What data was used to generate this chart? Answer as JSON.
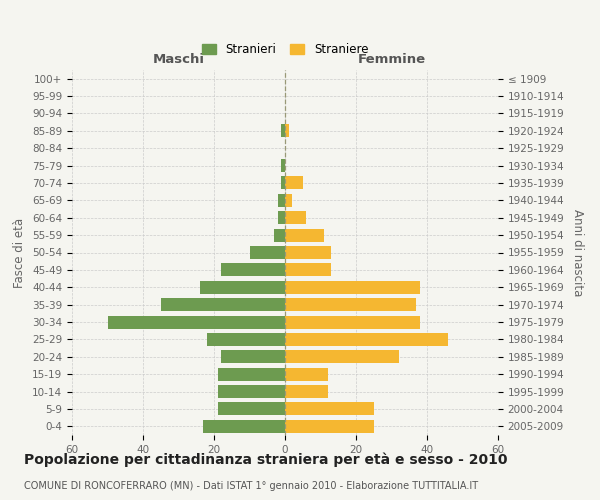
{
  "age_groups": [
    "0-4",
    "5-9",
    "10-14",
    "15-19",
    "20-24",
    "25-29",
    "30-34",
    "35-39",
    "40-44",
    "45-49",
    "50-54",
    "55-59",
    "60-64",
    "65-69",
    "70-74",
    "75-79",
    "80-84",
    "85-89",
    "90-94",
    "95-99",
    "100+"
  ],
  "birth_years": [
    "2005-2009",
    "2000-2004",
    "1995-1999",
    "1990-1994",
    "1985-1989",
    "1980-1984",
    "1975-1979",
    "1970-1974",
    "1965-1969",
    "1960-1964",
    "1955-1959",
    "1950-1954",
    "1945-1949",
    "1940-1944",
    "1935-1939",
    "1930-1934",
    "1925-1929",
    "1920-1924",
    "1915-1919",
    "1910-1914",
    "≤ 1909"
  ],
  "males": [
    23,
    19,
    19,
    19,
    18,
    22,
    50,
    35,
    24,
    18,
    10,
    3,
    2,
    2,
    1,
    1,
    0,
    1,
    0,
    0,
    0
  ],
  "females": [
    25,
    25,
    12,
    12,
    32,
    46,
    38,
    37,
    38,
    13,
    13,
    11,
    6,
    2,
    5,
    0,
    0,
    1,
    0,
    0,
    0
  ],
  "male_color": "#6d9b50",
  "female_color": "#f5b731",
  "background_color": "#f5f5f0",
  "grid_color": "#cccccc",
  "title": "Popolazione per cittadinanza straniera per età e sesso - 2010",
  "subtitle": "COMUNE DI RONCOFERRARO (MN) - Dati ISTAT 1° gennaio 2010 - Elaborazione TUTTITALIA.IT",
  "ylabel_left": "Fasce di età",
  "ylabel_right": "Anni di nascita",
  "xlabel_left": "Maschi",
  "xlabel_right": "Femmine",
  "legend_males": "Stranieri",
  "legend_females": "Straniere",
  "xlim": 60,
  "title_fontsize": 10,
  "subtitle_fontsize": 7,
  "axis_label_fontsize": 8.5,
  "tick_fontsize": 7.5
}
